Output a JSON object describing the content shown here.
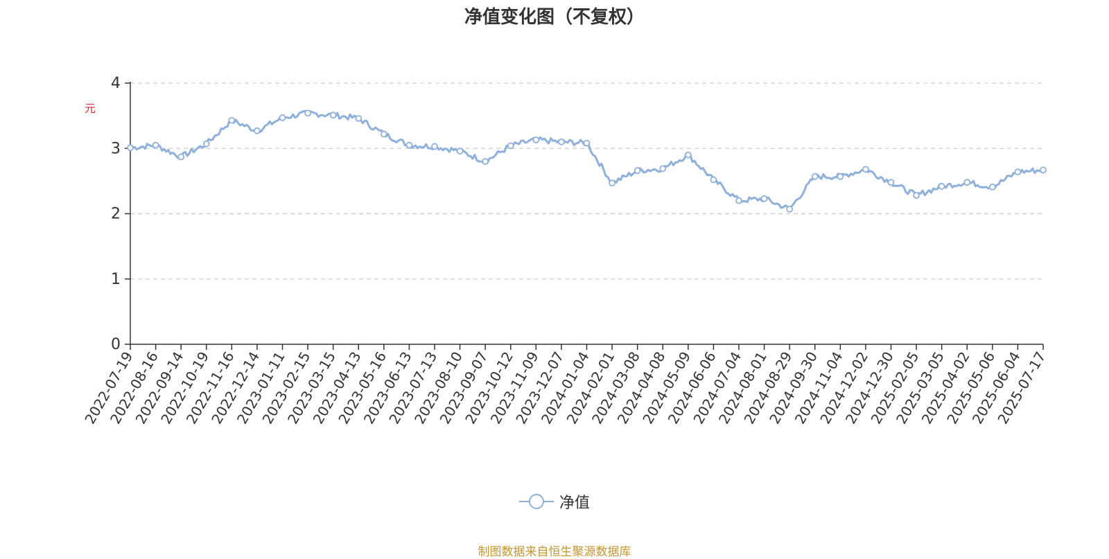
{
  "chart_data": {
    "type": "line",
    "title": "净值变化图（不复权）",
    "ylabel": "元",
    "ylim": [
      0,
      4
    ],
    "yticks": [
      0,
      1,
      2,
      3,
      4
    ],
    "grid": true,
    "legend_placement": "bottom-center",
    "series_color": "#8eb0dd",
    "categories": [
      "2022-07-19",
      "2022-08-16",
      "2022-09-14",
      "2022-10-19",
      "2022-11-16",
      "2022-12-14",
      "2023-01-11",
      "2023-02-15",
      "2023-03-15",
      "2023-04-13",
      "2023-05-16",
      "2023-06-13",
      "2023-07-13",
      "2023-08-10",
      "2023-09-07",
      "2023-10-12",
      "2023-11-09",
      "2023-12-07",
      "2024-01-04",
      "2024-02-01",
      "2024-03-08",
      "2024-04-08",
      "2024-05-09",
      "2024-06-06",
      "2024-07-04",
      "2024-08-01",
      "2024-08-29",
      "2024-09-30",
      "2024-11-04",
      "2024-12-02",
      "2024-12-30",
      "2025-02-05",
      "2025-03-05",
      "2025-04-02",
      "2025-05-06",
      "2025-06-04",
      "2025-07-17"
    ],
    "series": [
      {
        "name": "净值",
        "values": [
          3.01,
          3.05,
          2.87,
          3.07,
          3.43,
          3.27,
          3.47,
          3.54,
          3.51,
          3.46,
          3.22,
          3.05,
          3.03,
          2.96,
          2.8,
          3.04,
          3.13,
          3.1,
          3.08,
          2.47,
          2.66,
          2.69,
          2.9,
          2.52,
          2.2,
          2.23,
          2.07,
          2.57,
          2.57,
          2.68,
          2.48,
          2.28,
          2.42,
          2.48,
          2.41,
          2.64,
          2.67
        ]
      }
    ]
  },
  "legend": {
    "label": "净值"
  },
  "source_note": "制图数据来自恒生聚源数据库"
}
